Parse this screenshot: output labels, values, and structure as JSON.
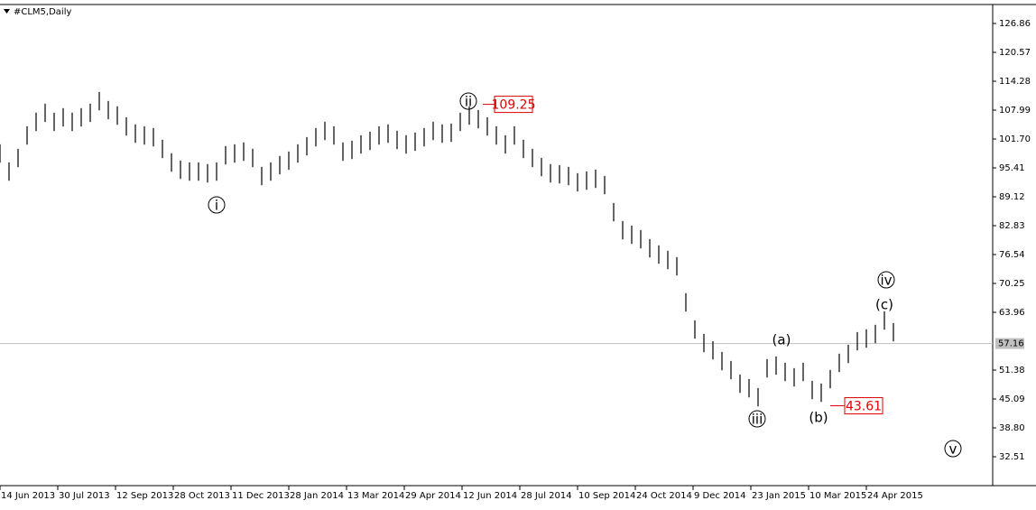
{
  "chart_data": {
    "type": "ohlc",
    "title": "#CLM5,Daily",
    "x": [
      0,
      5,
      10,
      15,
      20,
      25,
      30,
      35,
      40,
      45,
      50,
      55,
      60,
      65,
      70,
      75,
      80,
      85,
      90,
      95,
      100,
      105,
      110,
      115,
      120,
      125,
      130,
      135,
      140,
      145,
      150,
      155,
      160,
      165,
      170,
      175,
      180,
      185,
      190,
      195,
      200,
      205,
      210,
      215,
      220,
      225,
      230,
      235,
      240,
      245,
      250,
      255,
      260,
      265,
      270,
      275,
      280,
      285,
      290,
      295,
      300,
      305,
      310,
      315,
      320,
      325,
      330,
      335,
      340,
      345,
      350,
      355,
      360,
      365,
      370,
      375,
      380,
      385,
      390,
      395,
      400,
      405,
      410,
      415,
      420,
      425,
      430,
      435,
      440,
      445,
      450,
      455,
      460,
      465,
      470,
      475,
      480,
      485,
      490,
      495
    ],
    "series": [
      {
        "name": "high",
        "color": "#000000",
        "values": [
          100.55,
          96.62,
          99.57,
          104.48,
          107.43,
          109.4,
          107.43,
          108.42,
          107.43,
          108.42,
          109.4,
          111.95,
          109.99,
          108.81,
          106.45,
          104.88,
          104.48,
          104.09,
          101.54,
          98.59,
          97.01,
          96.62,
          96.62,
          96.23,
          96.62,
          100.16,
          100.55,
          100.95,
          99.57,
          95.64,
          96.62,
          98.0,
          98.98,
          100.55,
          102.12,
          104.09,
          105.47,
          104.48,
          100.95,
          101.34,
          102.52,
          103.3,
          104.48,
          104.88,
          103.5,
          102.52,
          103.11,
          104.09,
          105.47,
          104.88,
          105.07,
          107.43,
          108.81,
          108.02,
          106.45,
          104.48,
          102.52,
          104.48,
          101.54,
          99.57,
          97.6,
          96.23,
          96.03,
          95.64,
          94.26,
          94.65,
          95.05,
          93.67,
          87.77,
          83.84,
          82.86,
          81.88,
          79.91,
          78.54,
          77.36,
          75.98,
          68.12,
          62.22,
          59.27,
          57.7,
          55.34,
          53.37,
          50.42,
          49.44,
          47.48,
          53.77,
          54.36,
          52.98,
          51.8,
          52.98,
          49.05,
          48.46,
          51.41,
          54.95,
          56.91,
          59.66,
          60.25,
          61.24,
          64.19,
          61.63
        ]
      },
      {
        "name": "low",
        "color": "#000000",
        "values": [
          96.55,
          92.62,
          95.57,
          100.48,
          103.43,
          105.4,
          103.43,
          104.42,
          103.43,
          104.42,
          105.4,
          107.95,
          105.99,
          104.81,
          102.45,
          100.88,
          100.48,
          100.09,
          97.54,
          94.59,
          93.01,
          92.62,
          92.62,
          92.23,
          92.62,
          96.16,
          96.55,
          96.95,
          95.57,
          91.64,
          92.62,
          94.0,
          94.98,
          96.55,
          98.12,
          100.09,
          101.47,
          100.48,
          96.95,
          97.34,
          98.52,
          99.3,
          100.48,
          100.88,
          99.5,
          98.52,
          99.11,
          100.09,
          101.47,
          100.88,
          101.07,
          103.43,
          104.81,
          104.02,
          102.45,
          100.48,
          98.52,
          100.48,
          97.54,
          95.57,
          93.6,
          92.23,
          92.03,
          91.64,
          90.26,
          90.65,
          91.05,
          89.67,
          83.77,
          79.84,
          78.86,
          77.88,
          75.91,
          74.54,
          73.36,
          71.98,
          64.12,
          58.22,
          55.27,
          53.7,
          51.34,
          49.37,
          46.42,
          45.44,
          43.48,
          49.77,
          50.36,
          48.98,
          47.8,
          48.98,
          45.05,
          44.46,
          47.41,
          50.95,
          52.91,
          55.66,
          56.25,
          57.24,
          60.19,
          57.63
        ]
      }
    ],
    "xlim": [
      0,
      550
    ],
    "xticks": [
      {
        "value": 0,
        "label": "14 Jun 2013"
      },
      {
        "value": 32,
        "label": "30 Jul 2013"
      },
      {
        "value": 64,
        "label": "12 Sep 2013"
      },
      {
        "value": 96,
        "label": "28 Oct 2013"
      },
      {
        "value": 128,
        "label": "11 Dec 2013"
      },
      {
        "value": 160,
        "label": "28 Jan 2014"
      },
      {
        "value": 192,
        "label": "13 Mar 2014"
      },
      {
        "value": 224,
        "label": "29 Apr 2014"
      },
      {
        "value": 256,
        "label": "12 Jun 2014"
      },
      {
        "value": 288,
        "label": "28 Jul 2014"
      },
      {
        "value": 320,
        "label": "10 Sep 2014"
      },
      {
        "value": 352,
        "label": "24 Oct 2014"
      },
      {
        "value": 384,
        "label": "9 Dec 2014"
      },
      {
        "value": 416,
        "label": "23 Jan 2015"
      },
      {
        "value": 448,
        "label": "10 Mar 2015"
      },
      {
        "value": 480,
        "label": "24 Apr 2015"
      }
    ],
    "ylim": [
      26.22,
      130.99
    ],
    "yticks": [
      126.86,
      120.57,
      114.28,
      107.99,
      {
        "value": 101.7,
        "label": "101.70"
      },
      95.41,
      89.12,
      82.83,
      76.54,
      70.25,
      63.96,
      51.38,
      45.09,
      {
        "value": 38.8,
        "label": "38.80"
      },
      32.51
    ],
    "current_price": 57.16,
    "price_callouts": [
      109.25,
      43.61
    ],
    "wave_labels": [
      "i",
      "ii",
      "iii",
      "iv",
      "v",
      "(a)",
      "(b)",
      "(c)"
    ]
  }
}
